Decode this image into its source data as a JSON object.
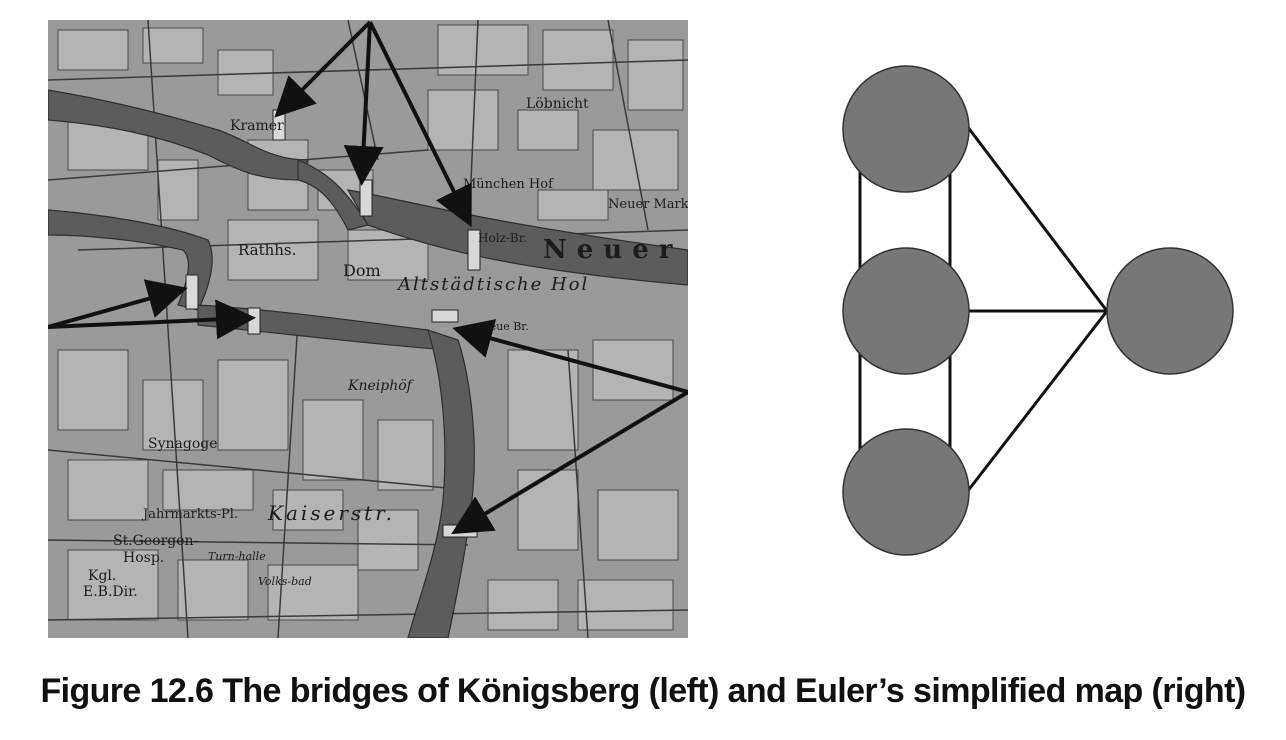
{
  "colors": {
    "node_fill": "#777777",
    "edge_stroke": "#111111",
    "map_base": "#8f8f8f",
    "river": "#5c5c5c",
    "arrow": "#111111"
  },
  "map_labels": {
    "kramer": "Kramer",
    "loebnicht": "Löbnicht",
    "muenchen_hof": "München Hof",
    "holz_br": "Holz-Br.",
    "neuer": "Neuer",
    "neuer_markt": "Neuer Markt",
    "rathaus": "Rathhs.",
    "dom": "Dom",
    "kneiphof": "Kneiphöf",
    "synagoge": "Synagoge",
    "jahrmarkts_pl": "Jahrmarkts-Pl.",
    "kaiserstr": "Kaiserstr.",
    "st_georgen": "St.Georgen-",
    "hosp": "Hosp.",
    "kgl": "Kgl.",
    "eb_dir": "E.B.Dir.",
    "turnhalle": "Turn-halle",
    "volksbad": "Volks-bad",
    "altstaedtische": "Altstädtische Hol",
    "neue_br": "Neue Br."
  },
  "graph": {
    "nodes": [
      {
        "id": "north_bank"
      },
      {
        "id": "kneiphof_island"
      },
      {
        "id": "south_bank"
      },
      {
        "id": "east_island"
      }
    ],
    "edges": [
      [
        "north_bank",
        "kneiphof_island"
      ],
      [
        "north_bank",
        "kneiphof_island"
      ],
      [
        "kneiphof_island",
        "south_bank"
      ],
      [
        "kneiphof_island",
        "south_bank"
      ],
      [
        "north_bank",
        "east_island"
      ],
      [
        "kneiphof_island",
        "east_island"
      ],
      [
        "south_bank",
        "east_island"
      ]
    ]
  },
  "caption": "Figure 12.6 The bridges of Königsberg (left) and Euler’s simplified map (right)"
}
